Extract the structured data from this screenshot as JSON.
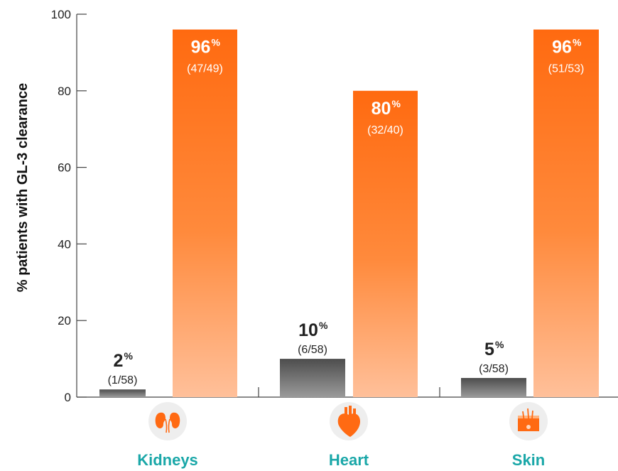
{
  "chart_data": {
    "type": "bar",
    "ylabel": "% patients with GL-3 clearance",
    "xlabel": "",
    "ylim": [
      0,
      100
    ],
    "yticks": [
      0,
      20,
      40,
      60,
      80,
      100
    ],
    "categories": [
      "Kidneys",
      "Heart",
      "Skin"
    ],
    "category_icons": [
      "kidneys-icon",
      "heart-icon",
      "skin-icon"
    ],
    "series": [
      {
        "values": [
          2,
          10,
          5
        ],
        "value_labels": [
          "2",
          "10",
          "5"
        ],
        "fractions": [
          "(1/58)",
          "(6/58)",
          "(3/58)"
        ],
        "color": "#6e6e6e"
      },
      {
        "values": [
          96,
          80,
          96
        ],
        "value_labels": [
          "96",
          "80",
          "96"
        ],
        "fractions": [
          "(47/49)",
          "(32/40)",
          "(51/53)"
        ],
        "color": "#ff6a13"
      }
    ],
    "percent_symbol": "%",
    "grid": false,
    "legend": "none"
  },
  "colors": {
    "category_label": "#1aa7a8",
    "icon_circle": "#eeeeee",
    "icon_fill": "#ff6a13"
  }
}
